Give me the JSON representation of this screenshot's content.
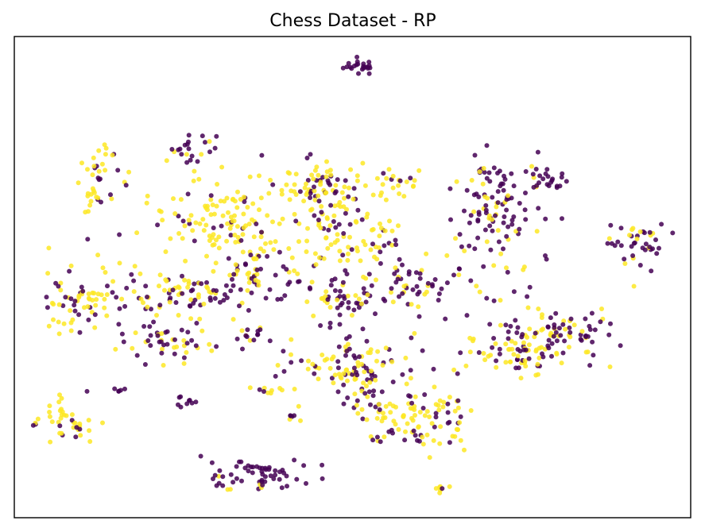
{
  "chart_data": {
    "type": "scatter",
    "title": "Chess Dataset - RP",
    "xlabel": "",
    "ylabel": "",
    "xlim": [
      0,
      100
    ],
    "ylim": [
      0,
      100
    ],
    "grid": false,
    "axes_ticks": false,
    "colors": {
      "class_0": "#440154",
      "class_1": "#fde725"
    },
    "clusters": [
      {
        "cx": 51.1,
        "cy": 93.9,
        "sx": 1.2,
        "sy": 0.9,
        "n": 22,
        "mix": 0.02
      },
      {
        "cx": 26.2,
        "cy": 77.2,
        "sx": 2.5,
        "sy": 1.4,
        "n": 22,
        "mix": 0.25
      },
      {
        "cx": 12.3,
        "cy": 68.8,
        "sx": 1.6,
        "sy": 4.5,
        "n": 40,
        "mix": 0.55
      },
      {
        "cx": 31.0,
        "cy": 62.0,
        "sx": 5.5,
        "sy": 4.8,
        "n": 130,
        "mix": 0.85
      },
      {
        "cx": 44.5,
        "cy": 67.5,
        "sx": 3.2,
        "sy": 3.8,
        "n": 95,
        "mix": 0.65
      },
      {
        "cx": 49.0,
        "cy": 57.5,
        "sx": 5.0,
        "sy": 3.5,
        "n": 75,
        "mix": 0.75
      },
      {
        "cx": 35.5,
        "cy": 50.5,
        "sx": 4.0,
        "sy": 2.8,
        "n": 55,
        "mix": 0.45
      },
      {
        "cx": 47.5,
        "cy": 45.5,
        "sx": 3.5,
        "sy": 3.0,
        "n": 55,
        "mix": 0.35
      },
      {
        "cx": 56.5,
        "cy": 69.0,
        "sx": 2.0,
        "sy": 2.0,
        "n": 22,
        "mix": 0.75
      },
      {
        "cx": 71.0,
        "cy": 64.0,
        "sx": 3.6,
        "sy": 6.5,
        "n": 120,
        "mix": 0.25
      },
      {
        "cx": 79.0,
        "cy": 70.5,
        "sx": 1.5,
        "sy": 1.2,
        "n": 22,
        "mix": 0.15
      },
      {
        "cx": 92.0,
        "cy": 56.5,
        "sx": 2.5,
        "sy": 2.6,
        "n": 42,
        "mix": 0.2
      },
      {
        "cx": 10.5,
        "cy": 45.5,
        "sx": 3.5,
        "sy": 3.0,
        "n": 70,
        "mix": 0.65
      },
      {
        "cx": 25.0,
        "cy": 46.0,
        "sx": 4.5,
        "sy": 2.8,
        "n": 80,
        "mix": 0.5
      },
      {
        "cx": 23.0,
        "cy": 36.5,
        "sx": 4.0,
        "sy": 2.2,
        "n": 50,
        "mix": 0.35
      },
      {
        "cx": 35.5,
        "cy": 38.0,
        "sx": 1.4,
        "sy": 1.0,
        "n": 14,
        "mix": 0.2
      },
      {
        "cx": 59.0,
        "cy": 48.5,
        "sx": 4.5,
        "sy": 3.0,
        "n": 55,
        "mix": 0.3
      },
      {
        "cx": 50.5,
        "cy": 31.5,
        "sx": 4.5,
        "sy": 3.5,
        "n": 110,
        "mix": 0.55
      },
      {
        "cx": 59.0,
        "cy": 20.5,
        "sx": 4.5,
        "sy": 3.0,
        "n": 110,
        "mix": 0.7
      },
      {
        "cx": 75.5,
        "cy": 35.5,
        "sx": 4.5,
        "sy": 4.0,
        "n": 120,
        "mix": 0.6
      },
      {
        "cx": 83.0,
        "cy": 38.5,
        "sx": 2.5,
        "sy": 1.6,
        "n": 35,
        "mix": 0.1
      },
      {
        "cx": 8.0,
        "cy": 20.0,
        "sx": 2.8,
        "sy": 2.2,
        "n": 42,
        "mix": 0.7
      },
      {
        "cx": 16.0,
        "cy": 26.5,
        "sx": 0.5,
        "sy": 0.4,
        "n": 5,
        "mix": 0.0
      },
      {
        "cx": 25.5,
        "cy": 24.0,
        "sx": 0.8,
        "sy": 0.8,
        "n": 9,
        "mix": 0.1
      },
      {
        "cx": 37.0,
        "cy": 26.5,
        "sx": 0.8,
        "sy": 0.5,
        "n": 7,
        "mix": 0.85
      },
      {
        "cx": 41.0,
        "cy": 20.5,
        "sx": 0.5,
        "sy": 0.5,
        "n": 6,
        "mix": 0.2
      },
      {
        "cx": 36.0,
        "cy": 8.5,
        "sx": 4.0,
        "sy": 2.0,
        "n": 60,
        "mix": 0.15
      },
      {
        "cx": 63.5,
        "cy": 6.0,
        "sx": 0.6,
        "sy": 0.4,
        "n": 7,
        "mix": 0.8
      }
    ]
  }
}
